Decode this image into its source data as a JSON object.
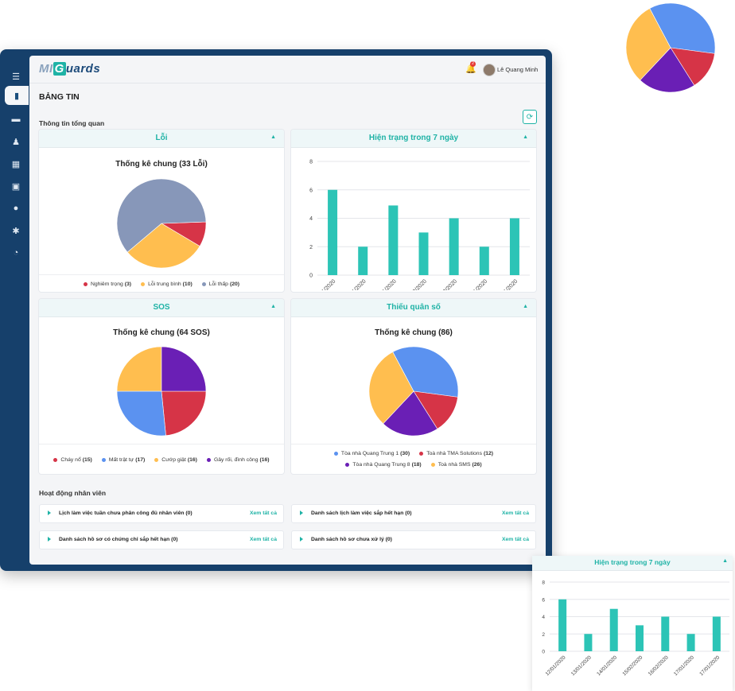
{
  "app": {
    "logo_mi": "MI",
    "logo_g": "G",
    "logo_rest": "uards"
  },
  "header": {
    "notification_count": "2",
    "user_name": "Lê Quang Minh"
  },
  "sidebar": {
    "items": [
      {
        "icon": "menu-icon",
        "glyph": "☰"
      },
      {
        "icon": "bar-chart-icon",
        "glyph": "▮"
      },
      {
        "icon": "monitor-icon",
        "glyph": "▬"
      },
      {
        "icon": "user-gear-icon",
        "glyph": "♟"
      },
      {
        "icon": "calendar-icon",
        "glyph": "▦"
      },
      {
        "icon": "clipboard-icon",
        "glyph": "▣"
      },
      {
        "icon": "user-icon",
        "glyph": "●"
      },
      {
        "icon": "gear-icon",
        "glyph": "✱"
      },
      {
        "icon": "clock-icon",
        "glyph": "◔"
      }
    ]
  },
  "page": {
    "title": "BẢNG TIN",
    "overview_title": "Thông tin tổng quan",
    "activity_title": "Hoạt động nhân viên"
  },
  "cards": {
    "loi": {
      "title": "Lỗi",
      "chart_title": "Thống kê chung (33 Lỗi)"
    },
    "status": {
      "title": "Hiện trạng trong 7 ngày"
    },
    "sos": {
      "title": "SOS",
      "chart_title": "Thống kê chung (64 SOS)"
    },
    "thieu": {
      "title": "Thiếu quân số",
      "chart_title": "Thống kê chung (86)"
    }
  },
  "chart_data": [
    {
      "type": "pie",
      "title": "Thống kê chung (33 Lỗi)",
      "labels": [
        "Nghiêm trọng",
        "Lỗi trung bình",
        "Lỗi thấp"
      ],
      "values": [
        3,
        10,
        20
      ],
      "colors": [
        "#d63447",
        "#ffbe4f",
        "#8797b9"
      ],
      "legend": "bottom"
    },
    {
      "type": "bar",
      "title": "Hiện trạng trong 7 ngày",
      "categories": [
        "12/01/2020",
        "13/01/2020",
        "14/01/2020",
        "15/02/2020",
        "16/02/2020",
        "17/01/2020",
        "17/01/2020"
      ],
      "values": [
        6,
        2,
        4.9,
        3,
        4,
        2,
        4
      ],
      "ylim": [
        0,
        8
      ],
      "yticks": [
        0,
        2,
        4,
        6,
        8
      ],
      "color": "#2cc4b6",
      "grid": true
    },
    {
      "type": "pie",
      "title": "Thống kê chung (64 SOS)",
      "labels": [
        "Cháy nổ",
        "Mất trật tự",
        "Cướp giật",
        "Gây rối, đình công"
      ],
      "values": [
        15,
        17,
        16,
        16
      ],
      "colors": [
        "#d63447",
        "#5b92f0",
        "#ffbe4f",
        "#6a1fb5"
      ],
      "legend": "bottom"
    },
    {
      "type": "pie",
      "title": "Thống kê chung (86)",
      "labels": [
        "Tòa nhà Quang Trung 1",
        "Toà nhà TMA Solutions",
        "Tòa nhà Quang Trung 8",
        "Toà nhà SMS"
      ],
      "values": [
        30,
        12,
        18,
        26
      ],
      "colors": [
        "#5b92f0",
        "#d63447",
        "#6a1fb5",
        "#ffbe4f"
      ],
      "legend": "bottom"
    }
  ],
  "activities": [
    {
      "label": "Lịch làm việc tuần chưa phân công đủ nhân viên (0)",
      "link": "Xem tất cả"
    },
    {
      "label": "Danh sách lịch làm việc sắp hết hạn (0)",
      "link": "Xem tất cả"
    },
    {
      "label": "Danh sách hồ sơ có chứng chỉ sắp hết hạn (0)",
      "link": "Xem tất cả"
    },
    {
      "label": "Danh sách hồ sơ chưa xử lý (0)",
      "link": "Xem tất cả"
    }
  ]
}
